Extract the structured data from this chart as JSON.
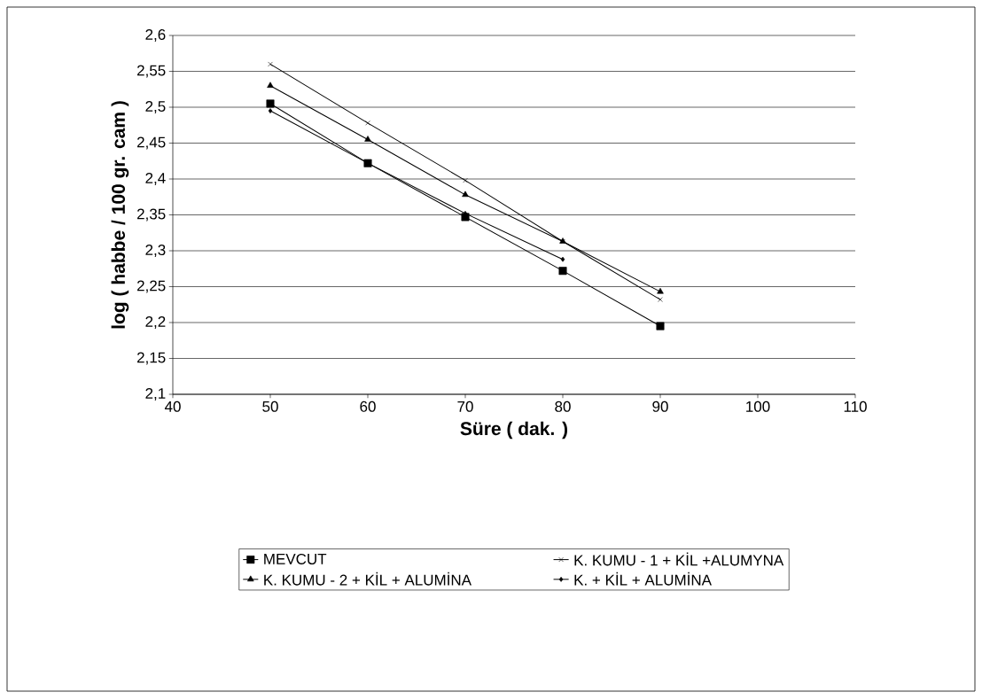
{
  "chart_data": {
    "type": "line",
    "xlabel": "Süre ( dak. )",
    "ylabel": "log ( habbe / 100 gr. cam )",
    "x": [
      50,
      60,
      70,
      80,
      90
    ],
    "series": [
      {
        "name": "MEVCUT",
        "color": "#000000",
        "marker": "square",
        "values": [
          2.505,
          2.422,
          2.347,
          2.272,
          2.195
        ]
      },
      {
        "name": "K. KUMU - 1 + KİL +ALUMYNA",
        "color": "#000000",
        "marker": "cross",
        "values": [
          2.56,
          2.478,
          2.398,
          2.313,
          2.232
        ]
      },
      {
        "name": "K. KUMU - 2 + KİL + ALUMİNA",
        "color": "#000000",
        "marker": "triangle",
        "values": [
          2.53,
          2.455,
          2.378,
          2.313,
          2.243
        ]
      },
      {
        "name": "K. + KİL + ALUMİNA",
        "color": "#000000",
        "marker": "diamond",
        "values": [
          2.495,
          2.422,
          2.352,
          2.288,
          null
        ]
      }
    ],
    "xlim": [
      40,
      110
    ],
    "xticks": [
      40,
      50,
      60,
      70,
      80,
      90,
      100,
      110
    ],
    "ylim": [
      2.1,
      2.6
    ],
    "yticks": [
      {
        "value": 2.1,
        "label": "2,1"
      },
      {
        "value": 2.15,
        "label": "2,15"
      },
      {
        "value": 2.2,
        "label": "2,2"
      },
      {
        "value": 2.25,
        "label": "2,25"
      },
      {
        "value": 2.3,
        "label": "2,3"
      },
      {
        "value": 2.35,
        "label": "2,35"
      },
      {
        "value": 2.4,
        "label": "2,4"
      },
      {
        "value": 2.45,
        "label": "2,45"
      },
      {
        "value": 2.5,
        "label": "2,5"
      },
      {
        "value": 2.55,
        "label": "2,55"
      },
      {
        "value": 2.6,
        "label": "2,6"
      }
    ],
    "grid": "y",
    "legend": "bottom",
    "line_style": "solid"
  }
}
